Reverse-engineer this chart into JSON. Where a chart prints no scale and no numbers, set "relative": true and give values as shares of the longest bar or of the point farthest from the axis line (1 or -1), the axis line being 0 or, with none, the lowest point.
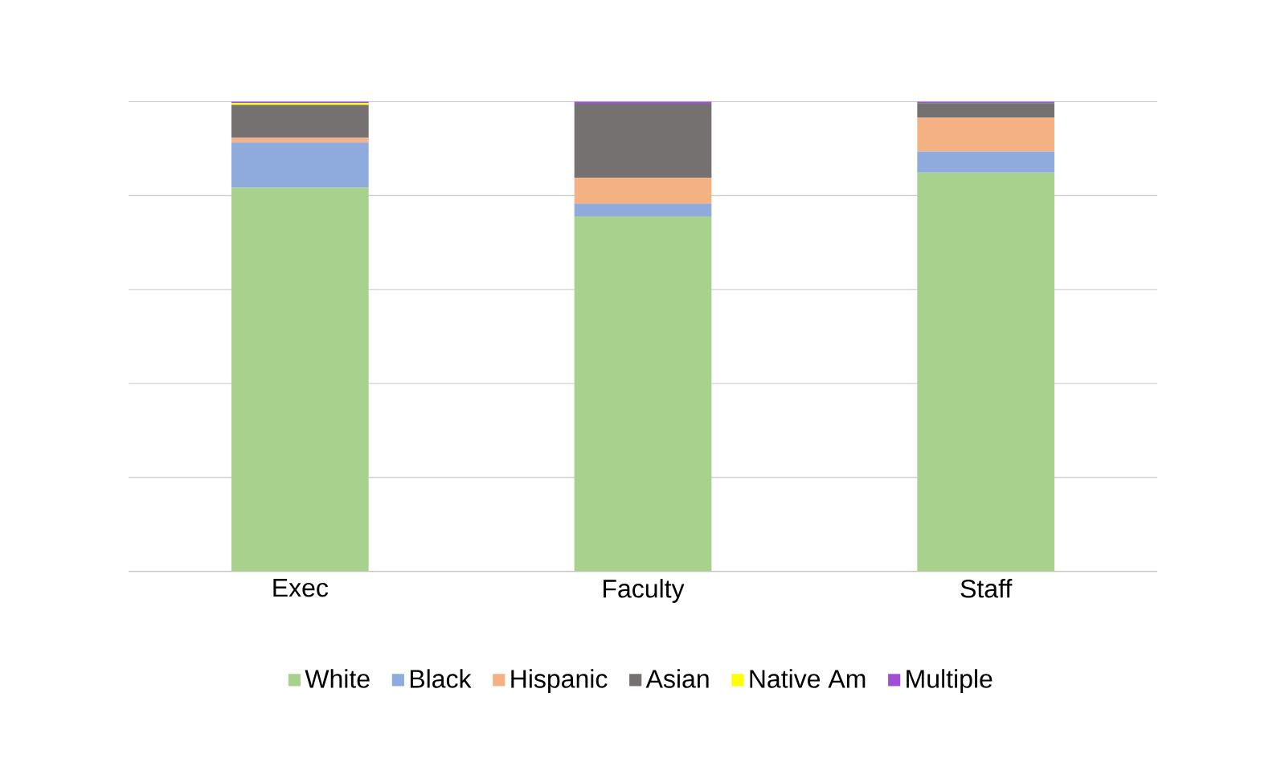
{
  "chart_data": {
    "type": "bar",
    "stacked": true,
    "relative": true,
    "grid": "y",
    "legend": "bottom",
    "categories": [
      "Exec",
      "Faculty",
      "Staff"
    ],
    "series": [
      {
        "name": "White",
        "color": "#a9d18e",
        "values": [
          0.817,
          0.756,
          0.849
        ]
      },
      {
        "name": "Black",
        "color": "#8faadc",
        "values": [
          0.096,
          0.027,
          0.045
        ]
      },
      {
        "name": "Hispanic",
        "color": "#f4b183",
        "values": [
          0.01,
          0.055,
          0.072
        ]
      },
      {
        "name": "Asian",
        "color": "#767171",
        "values": [
          0.07,
          0.158,
          0.031
        ]
      },
      {
        "name": "Native Am",
        "color": "#ffff00",
        "values": [
          0.004,
          0,
          0
        ]
      },
      {
        "name": "Multiple",
        "color": "#9e50d6",
        "values": [
          0.003,
          0.004,
          0.003
        ]
      }
    ]
  }
}
